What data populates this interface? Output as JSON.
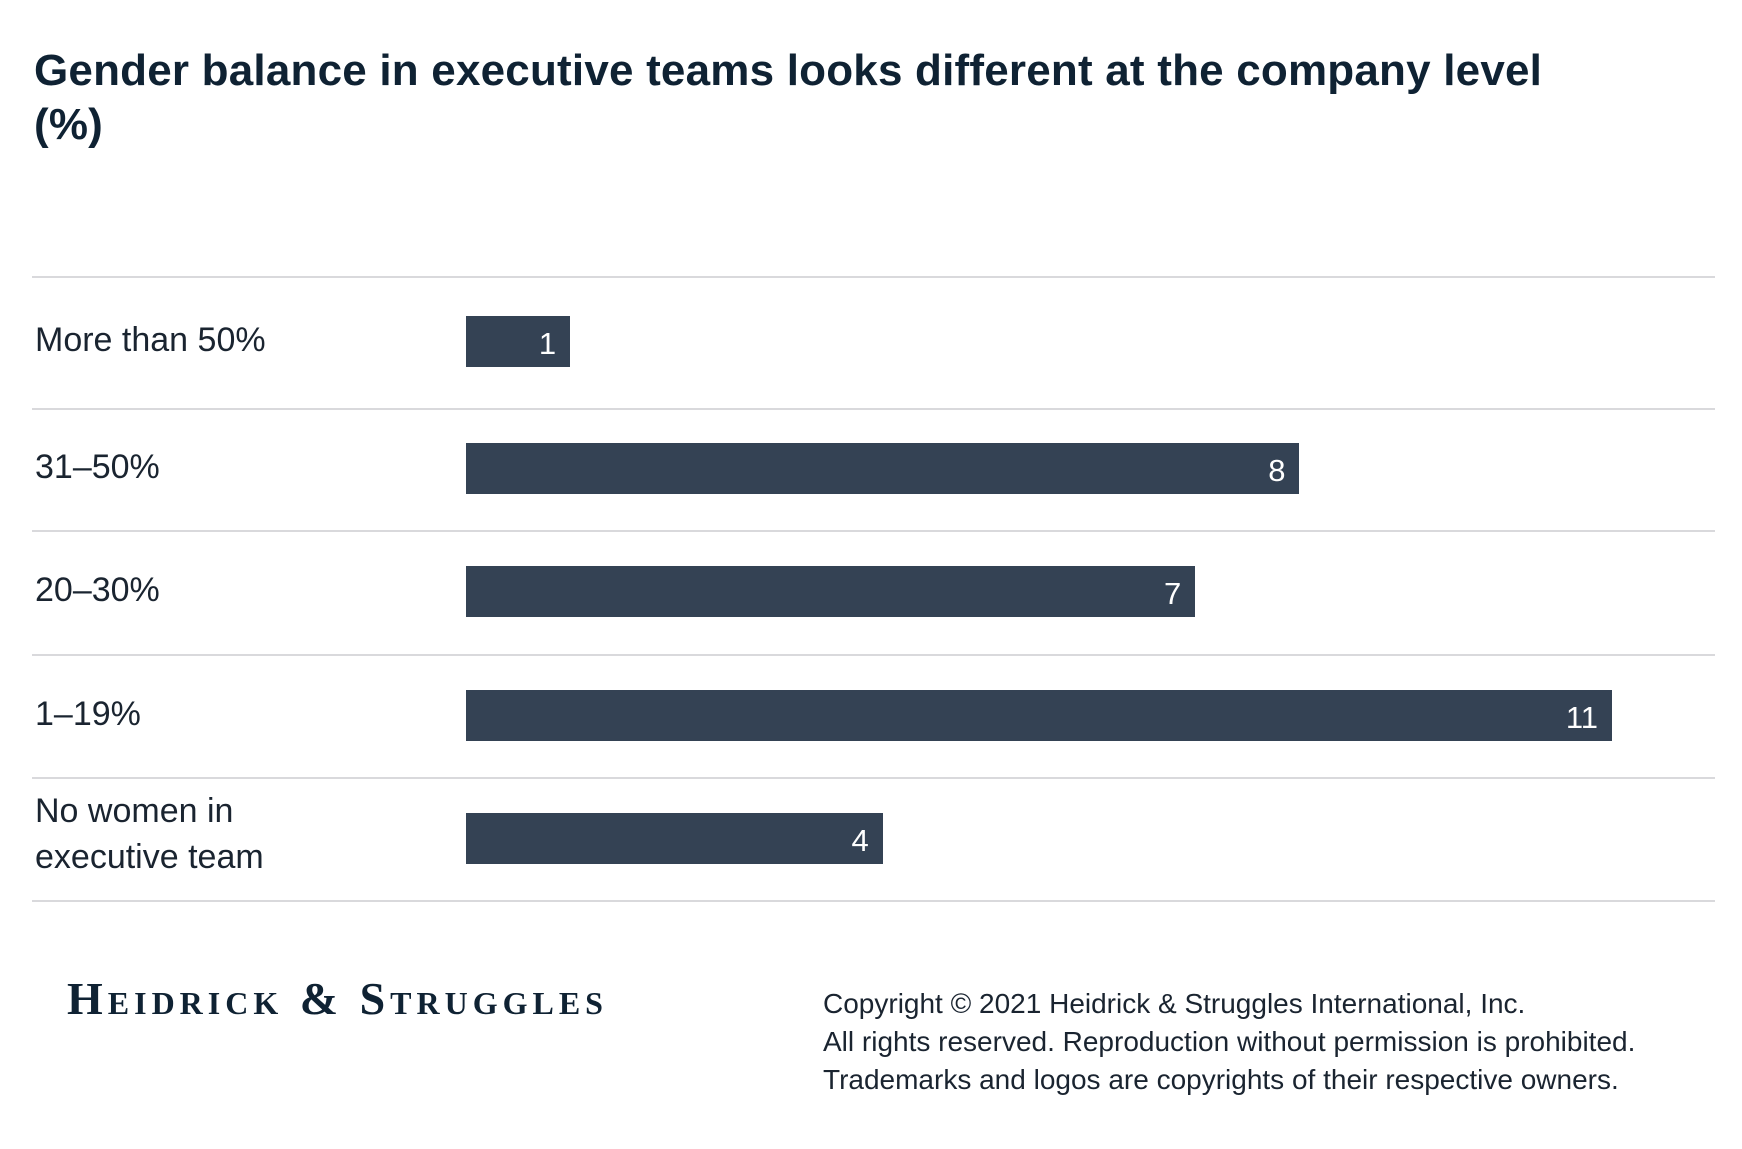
{
  "chart_data": {
    "type": "bar",
    "orientation": "horizontal",
    "title": "Gender balance in executive teams looks different at the company level (%)",
    "categories": [
      "More than 50%",
      "31–50%",
      "20–30%",
      "1–19%",
      "No women in executive team"
    ],
    "values": [
      1,
      8,
      7,
      11,
      4
    ],
    "xlim": [
      0,
      11
    ],
    "grid": false,
    "bar_color": "#344254",
    "data_labels": true
  },
  "footer": {
    "logo": "Heidrick & Struggles",
    "copyright_lines": [
      "Copyright © 2021 Heidrick & Struggles International, Inc.",
      "All rights reserved. Reproduction without permission is prohibited.",
      "Trademarks and logos are copyrights of their respective owners."
    ]
  }
}
